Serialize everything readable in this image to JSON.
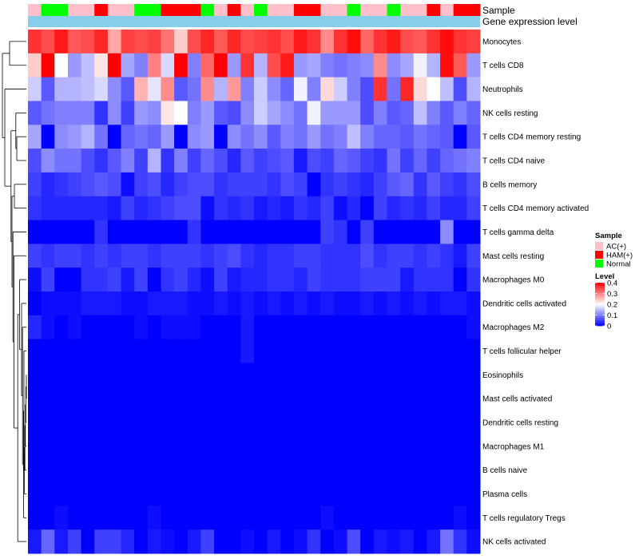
{
  "chart_data": {
    "type": "heatmap",
    "title": "",
    "annotation_tracks": [
      "Sample",
      "Gene expression level"
    ],
    "rows": [
      "Monocytes",
      "T cells CD8",
      "Neutrophils",
      "NK cells resting",
      "T cells CD4 memory resting",
      "T cells CD4 naive",
      "B cells memory",
      "T cells CD4 memory activated",
      "T cells gamma delta",
      "Mast cells resting",
      "Macrophages M0",
      "Dendritic cells activated",
      "Macrophages M2",
      "T cells follicular helper",
      "Eosinophils",
      "Mast cells activated",
      "Dendritic cells resting",
      "Macrophages M1",
      "B cells naive",
      "Plasma cells",
      "T cells regulatory  Tregs",
      "NK cells activated"
    ],
    "sample_groups": [
      "AC(+)",
      "Normal",
      "Normal",
      "AC(+)",
      "AC(+)",
      "HAM(+)",
      "AC(+)",
      "AC(+)",
      "Normal",
      "Normal",
      "HAM(+)",
      "HAM(+)",
      "HAM(+)",
      "Normal",
      "AC(+)",
      "HAM(+)",
      "AC(+)",
      "Normal",
      "AC(+)",
      "AC(+)",
      "HAM(+)",
      "HAM(+)",
      "AC(+)",
      "AC(+)",
      "Normal",
      "AC(+)",
      "AC(+)",
      "Normal",
      "AC(+)",
      "AC(+)",
      "HAM(+)",
      "AC(+)",
      "HAM(+)",
      "HAM(+)"
    ],
    "values": [
      [
        0.36,
        0.34,
        0.38,
        0.33,
        0.34,
        0.37,
        0.27,
        0.35,
        0.34,
        0.35,
        0.31,
        0.24,
        0.34,
        0.37,
        0.33,
        0.37,
        0.34,
        0.35,
        0.36,
        0.34,
        0.38,
        0.36,
        0.29,
        0.36,
        0.39,
        0.32,
        0.36,
        0.38,
        0.34,
        0.33,
        0.36,
        0.39,
        0.36,
        0.35
      ],
      [
        0.24,
        0.4,
        0.2,
        0.12,
        0.15,
        0.22,
        0.4,
        0.13,
        0.1,
        0.3,
        0.17,
        0.41,
        0.1,
        0.32,
        0.41,
        0.12,
        0.36,
        0.14,
        0.34,
        0.38,
        0.12,
        0.13,
        0.1,
        0.09,
        0.1,
        0.11,
        0.29,
        0.11,
        0.13,
        0.19,
        0.14,
        0.39,
        0.33,
        0.12
      ],
      [
        0.16,
        0.07,
        0.14,
        0.14,
        0.15,
        0.17,
        0.11,
        0.07,
        0.26,
        0.18,
        0.29,
        0.07,
        0.09,
        0.29,
        0.14,
        0.28,
        0.1,
        0.16,
        0.11,
        0.08,
        0.19,
        0.1,
        0.23,
        0.16,
        0.1,
        0.06,
        0.36,
        0.09,
        0.37,
        0.23,
        0.2,
        0.15,
        0.06,
        0.14
      ],
      [
        0.07,
        0.09,
        0.1,
        0.1,
        0.1,
        0.04,
        0.11,
        0.05,
        0.12,
        0.11,
        0.22,
        0.2,
        0.1,
        0.12,
        0.07,
        0.06,
        0.11,
        0.16,
        0.13,
        0.11,
        0.09,
        0.19,
        0.12,
        0.12,
        0.12,
        0.06,
        0.1,
        0.07,
        0.08,
        0.15,
        0.1,
        0.07,
        0.1,
        0.08
      ],
      [
        0.13,
        0,
        0.11,
        0.12,
        0.14,
        0.09,
        0,
        0.08,
        0.09,
        0.08,
        0.12,
        0,
        0.11,
        0.12,
        0,
        0.11,
        0.09,
        0.11,
        0.07,
        0.1,
        0.09,
        0.12,
        0.09,
        0.1,
        0.15,
        0.1,
        0.08,
        0.08,
        0.07,
        0.09,
        0.08,
        0.07,
        0,
        0.07
      ],
      [
        0.06,
        0.11,
        0.09,
        0.09,
        0.06,
        0.04,
        0.07,
        0.1,
        0.05,
        0.14,
        0.04,
        0.1,
        0.05,
        0.08,
        0.06,
        0.03,
        0.07,
        0.05,
        0.06,
        0.07,
        0.02,
        0.06,
        0.05,
        0.08,
        0.07,
        0.05,
        0.04,
        0.09,
        0.05,
        0.08,
        0.05,
        0.08,
        0.09,
        0.1
      ],
      [
        0.05,
        0.03,
        0.04,
        0.05,
        0.06,
        0.07,
        0.06,
        0.01,
        0.05,
        0.06,
        0.03,
        0.05,
        0.06,
        0.06,
        0.04,
        0.05,
        0.05,
        0.05,
        0.04,
        0.06,
        0.05,
        0,
        0.04,
        0.05,
        0.04,
        0.03,
        0.05,
        0.07,
        0.08,
        0.04,
        0.07,
        0.05,
        0.04,
        0.06
      ],
      [
        0.04,
        0.03,
        0.03,
        0.03,
        0.03,
        0.03,
        0.02,
        0.05,
        0.03,
        0.04,
        0.05,
        0.06,
        0.06,
        0.01,
        0.04,
        0.03,
        0.04,
        0.02,
        0.03,
        0.02,
        0.04,
        0.03,
        0.05,
        0.01,
        0.03,
        0,
        0.05,
        0.03,
        0.04,
        0.03,
        0.05,
        0.03,
        0.03,
        0.05
      ],
      [
        0,
        0,
        0,
        0,
        0,
        0.04,
        0,
        0,
        0,
        0,
        0,
        0,
        0.04,
        0,
        0,
        0,
        0,
        0,
        0,
        0,
        0,
        0,
        0.05,
        0.04,
        0,
        0.05,
        0,
        0,
        0,
        0,
        0,
        0.11,
        0,
        0
      ],
      [
        0.05,
        0.04,
        0.05,
        0.05,
        0.04,
        0.05,
        0.04,
        0.05,
        0.05,
        0.04,
        0.05,
        0.05,
        0.05,
        0.04,
        0.05,
        0.06,
        0.04,
        0.03,
        0.04,
        0.04,
        0.05,
        0.05,
        0.04,
        0.04,
        0.04,
        0.06,
        0.04,
        0.05,
        0.05,
        0.04,
        0.05,
        0.04,
        0.02,
        0.05
      ],
      [
        0.01,
        0.05,
        0,
        0,
        0.04,
        0.04,
        0.05,
        0.02,
        0.05,
        0,
        0.04,
        0.05,
        0.03,
        0.01,
        0.05,
        0.02,
        0.03,
        0.03,
        0.04,
        0.04,
        0.03,
        0.05,
        0.04,
        0.04,
        0.04,
        0.05,
        0.05,
        0.05,
        0.02,
        0.04,
        0.04,
        0.04,
        0,
        0.04
      ],
      [
        0,
        0.01,
        0.01,
        0.01,
        0.02,
        0.02,
        0.02,
        0.01,
        0.01,
        0.02,
        0.02,
        0.02,
        0.01,
        0.01,
        0.02,
        0.01,
        0.02,
        0.01,
        0.02,
        0.01,
        0.02,
        0.01,
        0.02,
        0.01,
        0.01,
        0.02,
        0.01,
        0.02,
        0.01,
        0.02,
        0.01,
        0.02,
        0.02,
        0.01
      ],
      [
        0.03,
        0.01,
        0,
        0.01,
        0,
        0,
        0,
        0,
        0.01,
        0,
        0.01,
        0.01,
        0.01,
        0,
        0,
        0,
        0.02,
        0,
        0,
        0,
        0,
        0,
        0,
        0,
        0,
        0,
        0,
        0,
        0,
        0,
        0,
        0,
        0,
        0.01
      ],
      [
        0,
        0,
        0,
        0,
        0,
        0,
        0,
        0,
        0,
        0,
        0,
        0,
        0,
        0,
        0,
        0,
        0.02,
        0,
        0,
        0,
        0,
        0,
        0,
        0,
        0,
        0,
        0,
        0,
        0,
        0,
        0,
        0,
        0,
        0
      ],
      [
        0,
        0,
        0,
        0,
        0,
        0,
        0,
        0,
        0,
        0,
        0,
        0,
        0,
        0,
        0,
        0,
        0,
        0,
        0,
        0,
        0,
        0,
        0,
        0,
        0,
        0,
        0,
        0,
        0,
        0,
        0,
        0,
        0,
        0
      ],
      [
        0,
        0,
        0,
        0,
        0,
        0,
        0,
        0,
        0,
        0,
        0,
        0,
        0,
        0,
        0,
        0,
        0,
        0,
        0,
        0,
        0,
        0,
        0,
        0,
        0,
        0,
        0,
        0,
        0,
        0,
        0,
        0,
        0,
        0
      ],
      [
        0,
        0,
        0,
        0,
        0,
        0,
        0,
        0,
        0,
        0,
        0,
        0,
        0,
        0,
        0,
        0,
        0,
        0,
        0,
        0,
        0,
        0,
        0,
        0,
        0,
        0,
        0,
        0,
        0,
        0,
        0,
        0,
        0,
        0
      ],
      [
        0,
        0,
        0,
        0,
        0,
        0,
        0,
        0,
        0,
        0,
        0,
        0,
        0,
        0,
        0,
        0,
        0,
        0,
        0,
        0,
        0,
        0,
        0,
        0,
        0,
        0,
        0,
        0,
        0,
        0,
        0,
        0,
        0,
        0
      ],
      [
        0,
        0,
        0,
        0,
        0,
        0,
        0,
        0,
        0,
        0,
        0,
        0,
        0,
        0,
        0,
        0,
        0,
        0,
        0,
        0,
        0,
        0,
        0,
        0,
        0,
        0,
        0,
        0,
        0,
        0,
        0,
        0,
        0,
        0
      ],
      [
        0,
        0,
        0,
        0,
        0,
        0,
        0,
        0,
        0,
        0,
        0,
        0,
        0,
        0,
        0,
        0,
        0,
        0,
        0,
        0,
        0,
        0,
        0,
        0,
        0,
        0,
        0,
        0,
        0,
        0,
        0,
        0,
        0,
        0
      ],
      [
        0,
        0,
        0.01,
        0,
        0,
        0,
        0,
        0,
        0,
        0.01,
        0,
        0,
        0,
        0,
        0,
        0,
        0,
        0,
        0,
        0,
        0,
        0,
        0.01,
        0,
        0,
        0,
        0,
        0,
        0,
        0,
        0,
        0,
        0.01,
        0
      ],
      [
        0.02,
        0.08,
        0.02,
        0.05,
        0,
        0.05,
        0.05,
        0.03,
        0,
        0.02,
        0.01,
        0,
        0.02,
        0.05,
        0,
        0,
        0.01,
        0,
        0.02,
        0,
        0.01,
        0.04,
        0,
        0.01,
        0.06,
        0,
        0.02,
        0.01,
        0.02,
        0,
        0.02,
        0.09,
        0.04,
        0.01
      ]
    ],
    "color_scale": {
      "name": "Level",
      "breaks": [
        0,
        0.1,
        0.2,
        0.3,
        0.4
      ],
      "tick_labels": [
        "0",
        "0.1",
        "0.2",
        "0.3",
        "0.4"
      ],
      "low": "#0000ff",
      "mid": "#ffffff",
      "high": "#ff0000",
      "mid_value": 0.2
    },
    "sample_legend": {
      "title": "Sample",
      "entries": [
        {
          "label": "AC(+)",
          "color": "#ffc0cb"
        },
        {
          "label": "HAM(+)",
          "color": "#ff0000"
        },
        {
          "label": "Normal",
          "color": "#00ff00"
        }
      ]
    },
    "gene_expression_color": "#87ceeb",
    "row_dendrogram": {
      "merges": [
        [
          -15,
          -16
        ],
        [
          -17,
          1
        ],
        [
          -18,
          2
        ],
        [
          -19,
          3
        ],
        [
          -20,
          4
        ],
        [
          -14,
          5
        ],
        [
          -21,
          6
        ],
        [
          -13,
          7
        ],
        [
          -12,
          8
        ],
        [
          -11,
          9
        ],
        [
          -22,
          10
        ],
        [
          -5,
          -6
        ],
        [
          -4,
          12
        ],
        [
          -7,
          -8
        ],
        [
          -10,
          11
        ],
        [
          -9,
          15
        ],
        [
          14,
          16
        ],
        [
          13,
          17
        ],
        [
          -1,
          -2
        ],
        [
          -3,
          18
        ],
        [
          19,
          20
        ]
      ],
      "heights": [
        0.0,
        0.02,
        0.04,
        0.06,
        0.08,
        0.1,
        0.12,
        0.16,
        0.2,
        0.28,
        0.36,
        0.4,
        0.44,
        0.5,
        0.52,
        0.56,
        0.6,
        0.64,
        0.7,
        0.9,
        1.0
      ]
    }
  }
}
